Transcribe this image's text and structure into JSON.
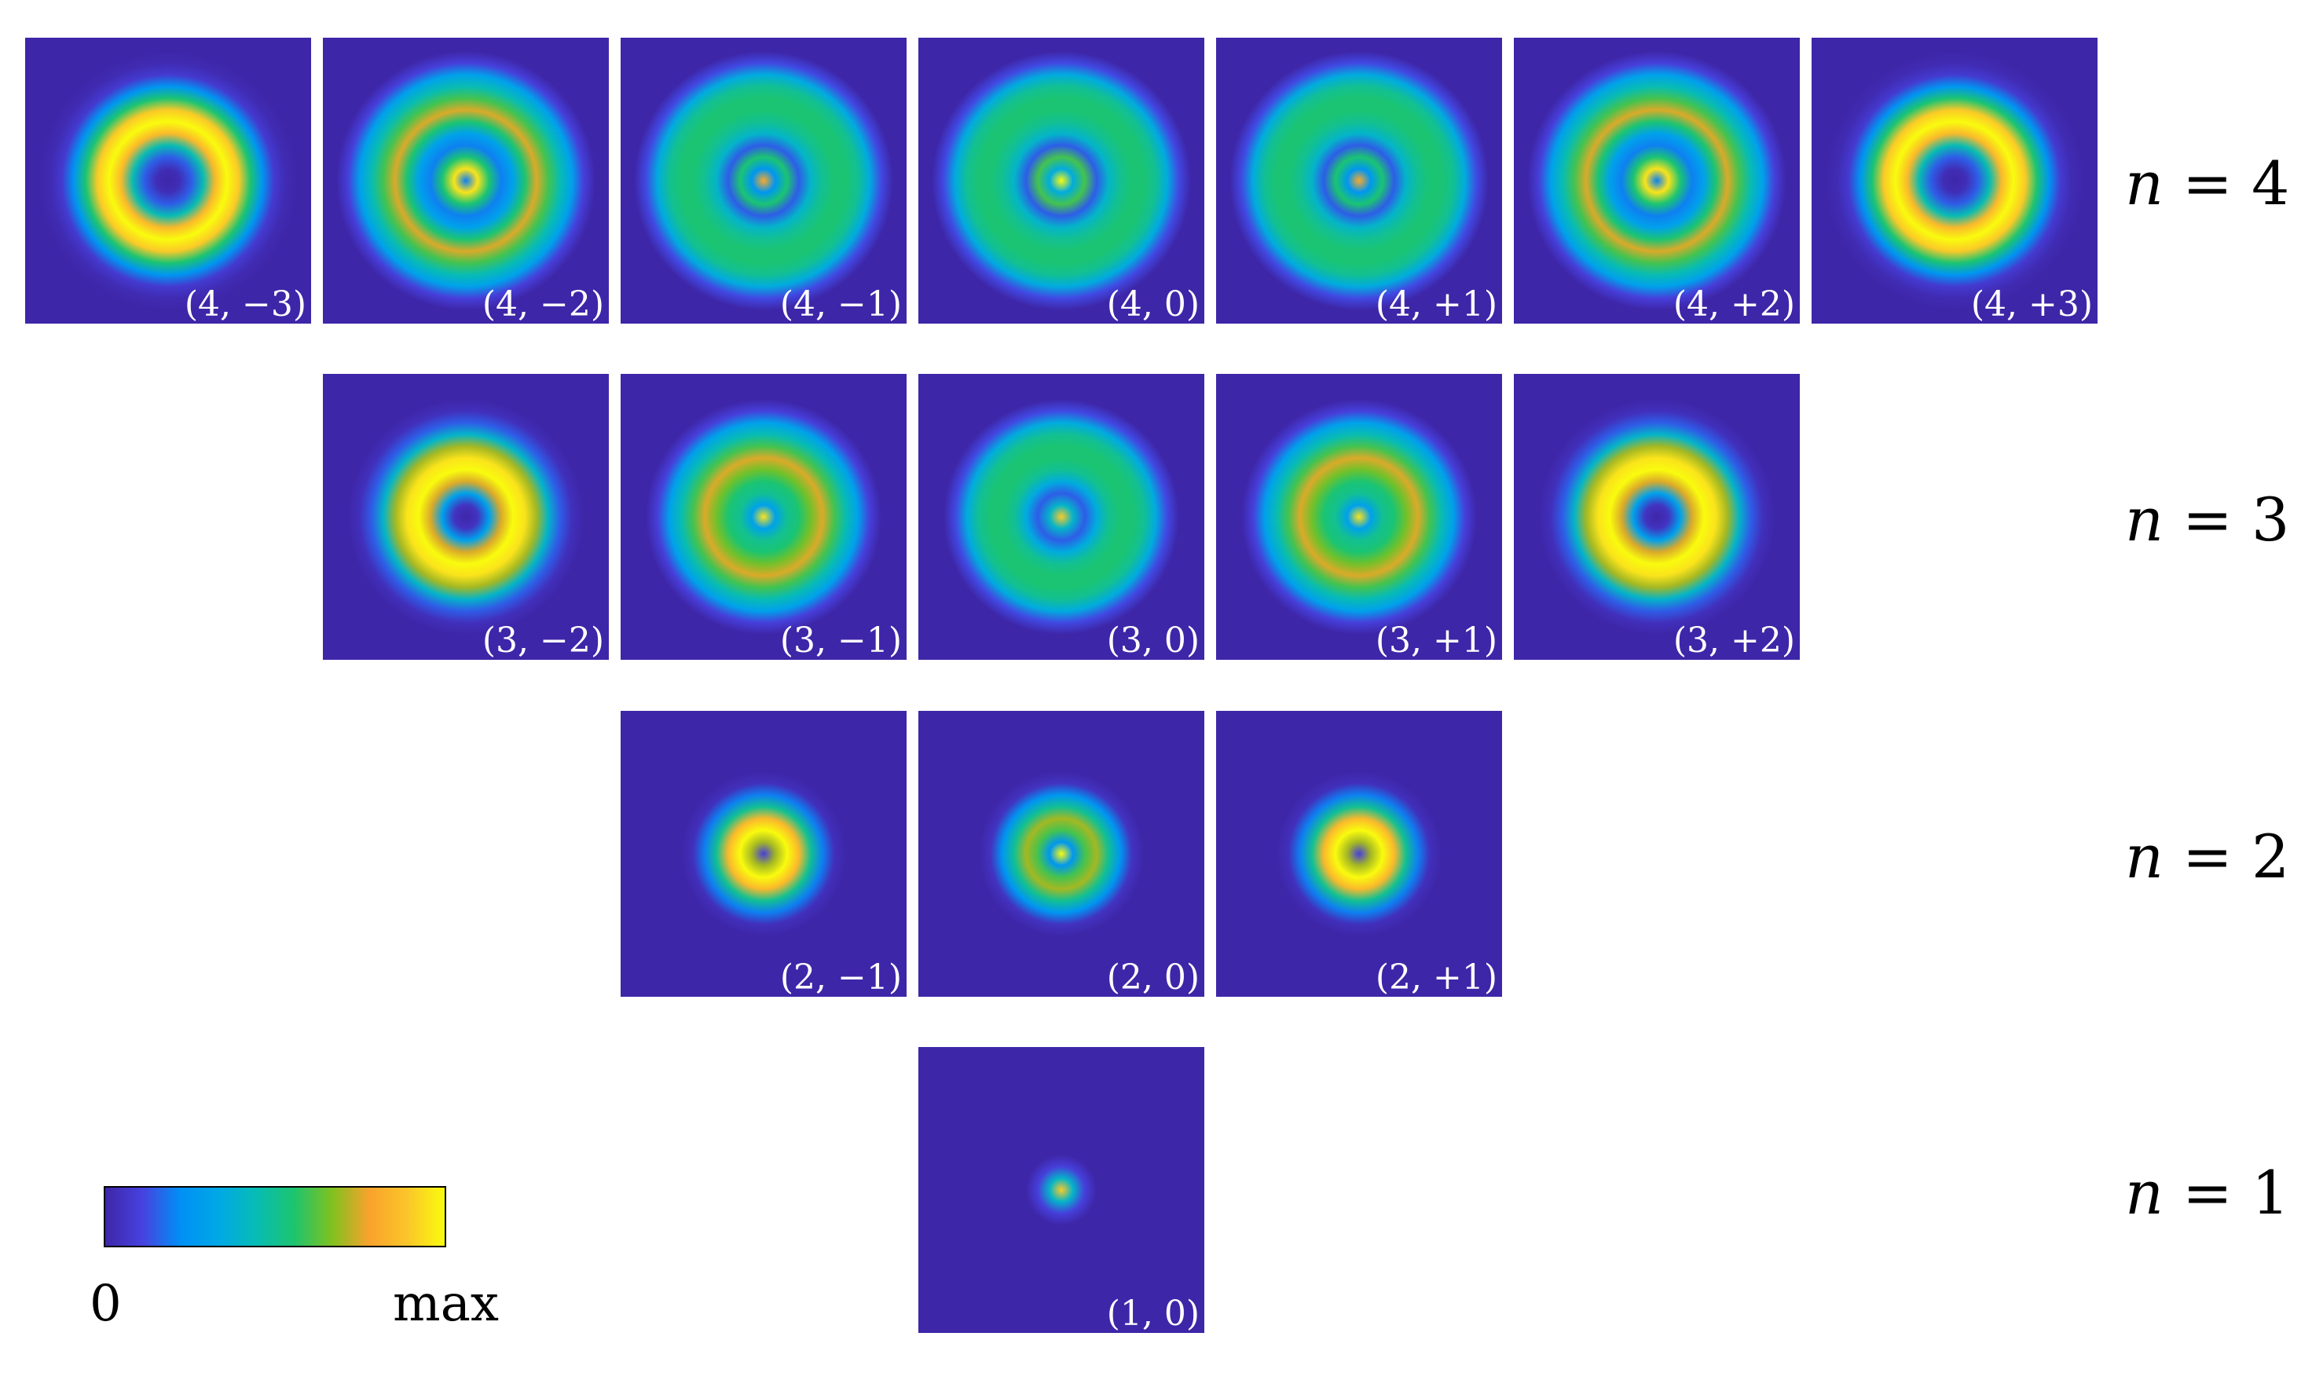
{
  "figure": {
    "rows": [
      {
        "n_label": "n = 4",
        "n_var": "n",
        "n_value": "4",
        "panels": [
          {
            "label": "(4, −3)",
            "profile": [
              0.0,
              0.03,
              0.15,
              0.45,
              0.85,
              1.0,
              0.9,
              0.55,
              0.25,
              0.08,
              0.02,
              0.0
            ]
          },
          {
            "label": "(4, −2)",
            "profile": [
              0.2,
              0.95,
              0.55,
              0.2,
              0.3,
              0.55,
              0.75,
              0.6,
              0.45,
              0.3,
              0.1,
              0.0
            ]
          },
          {
            "label": "(4, −1)",
            "profile": [
              0.8,
              0.25,
              0.55,
              0.15,
              0.4,
              0.5,
              0.55,
              0.55,
              0.5,
              0.35,
              0.12,
              0.0
            ]
          },
          {
            "label": "(4, 0)",
            "profile": [
              1.0,
              0.35,
              0.6,
              0.15,
              0.4,
              0.5,
              0.55,
              0.55,
              0.5,
              0.35,
              0.12,
              0.0
            ]
          },
          {
            "label": "(4, +1)",
            "profile": [
              0.8,
              0.25,
              0.55,
              0.15,
              0.4,
              0.5,
              0.55,
              0.55,
              0.5,
              0.35,
              0.12,
              0.0
            ]
          },
          {
            "label": "(4, +2)",
            "profile": [
              0.2,
              0.95,
              0.55,
              0.2,
              0.3,
              0.55,
              0.75,
              0.6,
              0.45,
              0.3,
              0.1,
              0.0
            ]
          },
          {
            "label": "(4, +3)",
            "profile": [
              0.0,
              0.03,
              0.15,
              0.45,
              0.85,
              1.0,
              0.9,
              0.55,
              0.25,
              0.08,
              0.02,
              0.0
            ]
          }
        ]
      },
      {
        "n_label": "n = 3",
        "n_var": "n",
        "n_value": "3",
        "panels": [
          {
            "label": "(3, −2)",
            "profile": [
              0.0,
              0.05,
              0.3,
              0.75,
              1.0,
              0.95,
              0.7,
              0.4,
              0.15,
              0.04,
              0.0,
              0.0
            ]
          },
          {
            "label": "(3, −1)",
            "profile": [
              0.95,
              0.3,
              0.5,
              0.55,
              0.65,
              0.75,
              0.6,
              0.45,
              0.3,
              0.1,
              0.0,
              0.0
            ]
          },
          {
            "label": "(3, 0)",
            "profile": [
              0.9,
              0.4,
              0.15,
              0.35,
              0.5,
              0.55,
              0.55,
              0.5,
              0.35,
              0.12,
              0.0,
              0.0
            ]
          },
          {
            "label": "(3, +1)",
            "profile": [
              0.95,
              0.3,
              0.5,
              0.55,
              0.65,
              0.75,
              0.6,
              0.45,
              0.3,
              0.1,
              0.0,
              0.0
            ]
          },
          {
            "label": "(3, +2)",
            "profile": [
              0.0,
              0.05,
              0.3,
              0.75,
              1.0,
              0.95,
              0.7,
              0.4,
              0.15,
              0.04,
              0.0,
              0.0
            ]
          }
        ]
      },
      {
        "n_label": "n = 2",
        "n_var": "n",
        "n_value": "2",
        "panels": [
          {
            "label": "(2, −1)",
            "profile": [
              0.1,
              0.7,
              1.0,
              0.85,
              0.5,
              0.2,
              0.04,
              0.0,
              0.0,
              0.0,
              0.0,
              0.0
            ]
          },
          {
            "label": "(2, 0)",
            "profile": [
              1.0,
              0.25,
              0.6,
              0.7,
              0.5,
              0.25,
              0.05,
              0.0,
              0.0,
              0.0,
              0.0,
              0.0
            ]
          },
          {
            "label": "(2, +1)",
            "profile": [
              0.1,
              0.7,
              1.0,
              0.85,
              0.5,
              0.2,
              0.04,
              0.0,
              0.0,
              0.0,
              0.0,
              0.0
            ]
          }
        ]
      },
      {
        "n_label": "n = 1",
        "n_var": "n",
        "n_value": "1",
        "panels": [
          {
            "label": "(1, 0)",
            "profile": [
              0.9,
              0.4,
              0.1,
              0.0,
              0.0,
              0.0,
              0.0,
              0.0,
              0.0,
              0.0,
              0.0,
              0.0
            ]
          }
        ]
      }
    ],
    "colorbar": {
      "min_label": "0",
      "max_label": "max",
      "colors": [
        "#3e26a8",
        "#4742e0",
        "#0090f5",
        "#00a8e6",
        "#07bcb5",
        "#1cc46f",
        "#7fc11f",
        "#f9a22c",
        "#fbc52a",
        "#f9fb0e"
      ]
    }
  }
}
